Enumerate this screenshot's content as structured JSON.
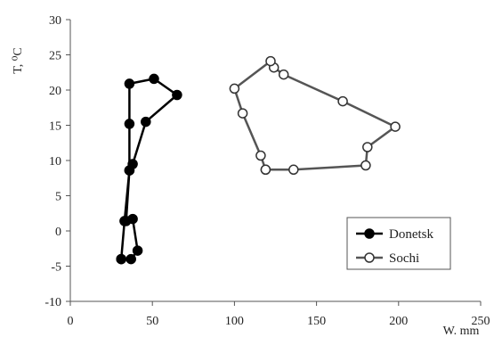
{
  "chart_data": {
    "type": "line",
    "xlabel": "W. mm",
    "ylabel": "T, ⁰C",
    "xlim": [
      0,
      250
    ],
    "ylim": [
      -10,
      30
    ],
    "x_ticks": [
      0,
      50,
      100,
      150,
      200,
      250
    ],
    "y_ticks": [
      -10,
      -5,
      0,
      5,
      10,
      15,
      20,
      25,
      30
    ],
    "grid": false,
    "legend_position": "bottom-right",
    "series": [
      {
        "name": "Donetsk",
        "color": "#000000",
        "marker": "filled-circle",
        "points": [
          {
            "x": 31,
            "y": -4.0
          },
          {
            "x": 37,
            "y": -4.0
          },
          {
            "x": 41,
            "y": -2.8
          },
          {
            "x": 38,
            "y": 1.7
          },
          {
            "x": 34,
            "y": 1.4
          },
          {
            "x": 36,
            "y": 8.6
          },
          {
            "x": 38,
            "y": 9.5
          },
          {
            "x": 46,
            "y": 15.5
          },
          {
            "x": 65,
            "y": 19.3
          },
          {
            "x": 51,
            "y": 21.6
          },
          {
            "x": 36,
            "y": 20.9
          },
          {
            "x": 36,
            "y": 15.2
          },
          {
            "x": 36,
            "y": 8.6
          },
          {
            "x": 33,
            "y": 1.4
          },
          {
            "x": 31,
            "y": -4.0
          }
        ]
      },
      {
        "name": "Sochi",
        "color": "#555555",
        "marker": "open-circle",
        "points": [
          {
            "x": 119,
            "y": 8.7
          },
          {
            "x": 136,
            "y": 8.7
          },
          {
            "x": 180,
            "y": 9.3
          },
          {
            "x": 181,
            "y": 11.9
          },
          {
            "x": 198,
            "y": 14.8
          },
          {
            "x": 166,
            "y": 18.4
          },
          {
            "x": 130,
            "y": 22.2
          },
          {
            "x": 124,
            "y": 23.2
          },
          {
            "x": 122,
            "y": 24.1
          },
          {
            "x": 100,
            "y": 20.2
          },
          {
            "x": 105,
            "y": 16.7
          },
          {
            "x": 116,
            "y": 10.7
          },
          {
            "x": 119,
            "y": 8.7
          }
        ]
      }
    ]
  }
}
